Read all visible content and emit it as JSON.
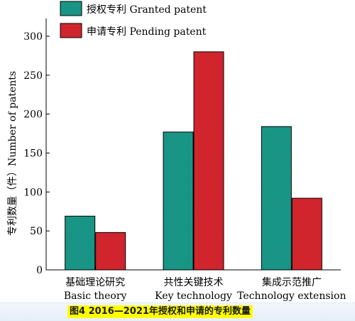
{
  "chart_data": {
    "type": "bar",
    "categories": [
      {
        "zh": "基础理论研究",
        "en": "Basic theory"
      },
      {
        "zh": "共性关键技术",
        "en": "Key technology"
      },
      {
        "zh": "集成示范推广",
        "en": "Technology extension"
      }
    ],
    "series": [
      {
        "name": "授权专利 Granted patent",
        "color": "#1a9a8a",
        "values": [
          69,
          177,
          184
        ]
      },
      {
        "name": "申请专利 Pending patent",
        "color": "#d8262f",
        "values": [
          48,
          280,
          92
        ]
      }
    ],
    "ylabel": "专利数量（件）Number of patents",
    "xlabel": "",
    "ylim": [
      0,
      300
    ],
    "yticks": [
      0,
      50,
      100,
      150,
      200,
      250,
      300
    ],
    "legend": "top-left",
    "grid": false
  },
  "caption": "图4  2016—2021年授权和申请的专利数量"
}
